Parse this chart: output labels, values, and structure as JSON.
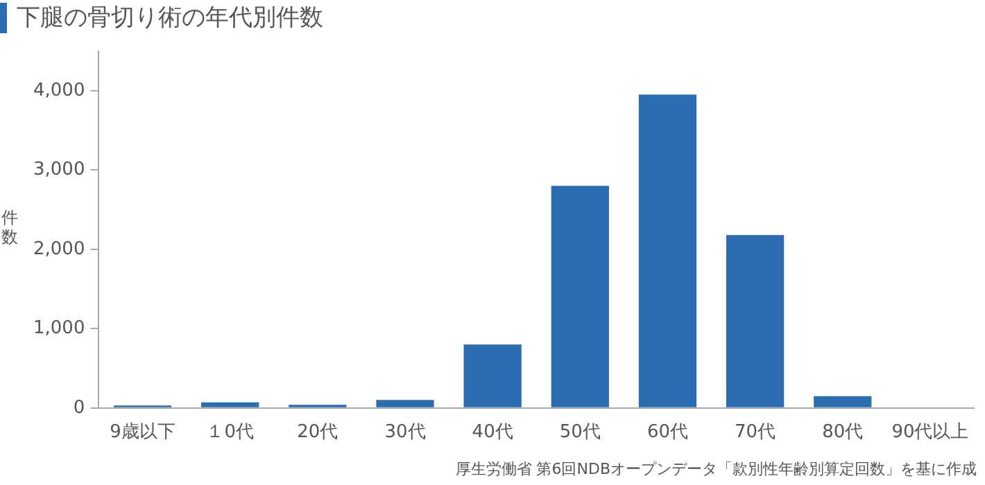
{
  "chart_data": {
    "type": "bar",
    "title": "下腿の骨切り術の年代別件数",
    "ylabel": "件数",
    "categories": [
      "9歳以下",
      "１0代",
      "20代",
      "30代",
      "40代",
      "50代",
      "60代",
      "70代",
      "80代",
      "90代以上"
    ],
    "values": [
      30,
      70,
      40,
      100,
      800,
      2800,
      3950,
      2180,
      150,
      0
    ],
    "color": "#2a6db3",
    "ylim": [
      0,
      4500
    ],
    "yticks": [
      0,
      {
        "value": 1000,
        "label": "1,000"
      },
      {
        "value": 2000,
        "label": "2,000"
      },
      {
        "value": 3000,
        "label": "3,000"
      },
      {
        "value": 4000,
        "label": "4,000"
      }
    ],
    "grid": false,
    "legend": false,
    "annotations": [
      "厚生労働省 第6回NDBオープンデータ「款別性年齢別算定回数」を基に作成"
    ]
  }
}
